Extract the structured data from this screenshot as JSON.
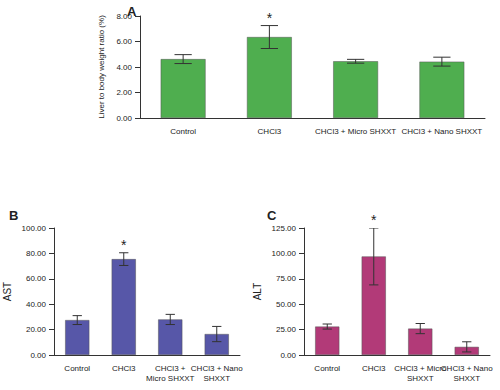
{
  "chart_data": [
    {
      "type": "bar",
      "title": "A",
      "y_label": "Liver to body weight ratio (%)",
      "categories": [
        "Control",
        "CHCl3",
        "CHCl3 + Micro SHXXT",
        "CHCl3 + Nano SHXXT"
      ],
      "values": [
        4.62,
        6.35,
        4.45,
        4.42
      ],
      "errors": [
        0.35,
        0.9,
        0.15,
        0.35
      ],
      "color": "#4fae4f",
      "ylim": [
        0,
        8
      ],
      "yticks": [
        {
          "value": 0,
          "label": "0.00"
        },
        {
          "value": 2,
          "label": "2.00"
        },
        {
          "value": 4,
          "label": "4.00"
        },
        {
          "value": 6,
          "label": "6.00"
        },
        {
          "value": 8,
          "label": "8.00"
        }
      ],
      "annotations": [
        {
          "category": "CHCl3",
          "text": "*"
        }
      ],
      "grid": false
    },
    {
      "type": "bar",
      "title": "B",
      "y_label": "AST",
      "categories": [
        "Control",
        "CHCl3",
        "CHCl3 +\nMicro SHXXT",
        "CHCl3 + Nano\nSHXXT"
      ],
      "values": [
        27.5,
        75.5,
        28,
        16.5
      ],
      "errors": [
        3.5,
        5,
        4,
        6
      ],
      "color": "#5757a8",
      "ylim": [
        0,
        100
      ],
      "yticks": [
        {
          "value": 0,
          "label": "0.00"
        },
        {
          "value": 20,
          "label": "20.00"
        },
        {
          "value": 40,
          "label": "40.00"
        },
        {
          "value": 60,
          "label": "60.00"
        },
        {
          "value": 80,
          "label": "80.00"
        },
        {
          "value": 100,
          "label": "100.00"
        }
      ],
      "annotations": [
        {
          "category": "CHCl3",
          "text": "*"
        }
      ],
      "grid": false
    },
    {
      "type": "bar",
      "title": "C",
      "y_label": "ALT",
      "categories": [
        "Control",
        "CHCl3",
        "CHCl3 + Micro\nSHXXT",
        "CHCl3 + Nano\nSHXXT"
      ],
      "values": [
        28,
        97,
        26,
        8
      ],
      "errors": [
        2.5,
        28,
        5,
        5
      ],
      "color": "#b23a78",
      "ylim": [
        0,
        125
      ],
      "yticks": [
        {
          "value": 0,
          "label": "0.00"
        },
        {
          "value": 25,
          "label": "25.00"
        },
        {
          "value": 50,
          "label": "50.00"
        },
        {
          "value": 75,
          "label": "75.00"
        },
        {
          "value": 100,
          "label": "100.00"
        },
        {
          "value": 125,
          "label": "125.00"
        }
      ],
      "annotations": [
        {
          "category": "CHCl3",
          "text": "*"
        }
      ],
      "grid": false
    }
  ]
}
